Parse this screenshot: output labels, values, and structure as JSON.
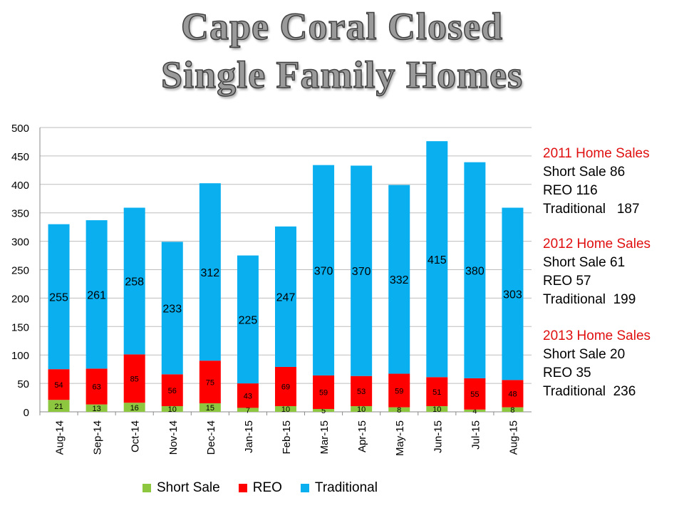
{
  "title": [
    "Cape Coral Closed",
    "Single Family Homes"
  ],
  "colors": {
    "short_sale": "#8dc63f",
    "reo": "#ff0000",
    "traditional": "#0aaff0"
  },
  "summary": [
    {
      "heading": "2011 Home  Sales",
      "lines": [
        "Short Sale 86",
        "REO 116",
        "Traditional   187"
      ]
    },
    {
      "heading": "2012 Home  Sales",
      "lines": [
        "Short Sale 61",
        "REO 57",
        "Traditional  199"
      ]
    },
    {
      "heading": "2013 Home  Sales",
      "lines": [
        "Short Sale 20",
        "REO 35",
        "Traditional  236"
      ]
    }
  ],
  "chart_data": {
    "type": "bar",
    "stacked": true,
    "categories": [
      "Aug-14",
      "Sep-14",
      "Oct-14",
      "Nov-14",
      "Dec-14",
      "Jan-15",
      "Feb-15",
      "Mar-15",
      "Apr-15",
      "May-15",
      "Jun-15",
      "Jul-15",
      "Aug-15"
    ],
    "series": [
      {
        "name": "Short Sale",
        "color": "#8dc63f",
        "values": [
          21,
          13,
          16,
          10,
          15,
          7,
          10,
          5,
          10,
          8,
          10,
          4,
          8
        ]
      },
      {
        "name": "REO",
        "color": "#ff0000",
        "values": [
          54,
          63,
          85,
          56,
          75,
          43,
          69,
          59,
          53,
          59,
          51,
          55,
          48
        ]
      },
      {
        "name": "Traditional",
        "color": "#0aaff0",
        "values": [
          255,
          261,
          258,
          233,
          312,
          225,
          247,
          370,
          370,
          332,
          415,
          380,
          303
        ]
      }
    ],
    "ylim": [
      0,
      500
    ],
    "yticks": [
      0,
      50,
      100,
      150,
      200,
      250,
      300,
      350,
      400,
      450,
      500
    ],
    "grid": true,
    "legend": "bottom"
  }
}
